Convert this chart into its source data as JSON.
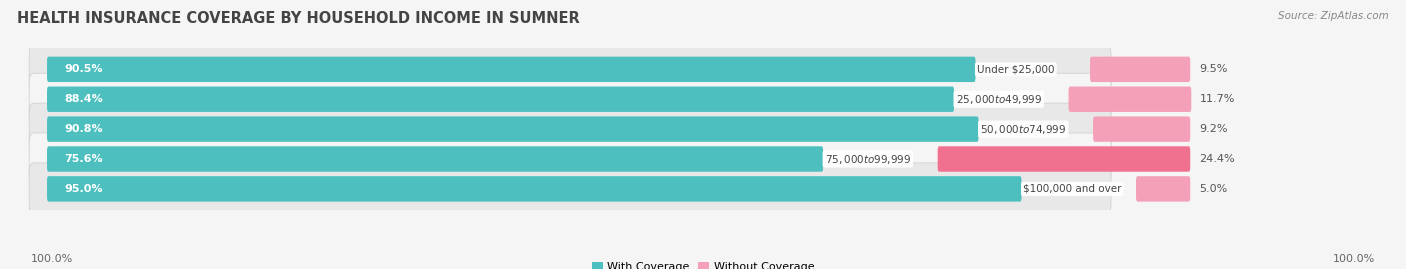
{
  "title": "HEALTH INSURANCE COVERAGE BY HOUSEHOLD INCOME IN SUMNER",
  "source": "Source: ZipAtlas.com",
  "categories": [
    "Under $25,000",
    "$25,000 to $49,999",
    "$50,000 to $74,999",
    "$75,000 to $99,999",
    "$100,000 and over"
  ],
  "with_coverage": [
    90.5,
    88.4,
    90.8,
    75.6,
    95.0
  ],
  "without_coverage": [
    9.5,
    11.7,
    9.2,
    24.4,
    5.0
  ],
  "color_with": "#4dbfbf",
  "color_without": "#f07090",
  "color_without_light": "#f4a0b8",
  "row_bg_color_odd": "#e8e8e8",
  "row_bg_color_even": "#f5f5f5",
  "fig_bg_color": "#f5f5f5",
  "legend_with": "With Coverage",
  "legend_without": "Without Coverage",
  "left_label": "100.0%",
  "right_label": "100.0%",
  "bar_height": 0.55,
  "title_fontsize": 10.5,
  "label_fontsize": 8.0,
  "source_fontsize": 7.5
}
